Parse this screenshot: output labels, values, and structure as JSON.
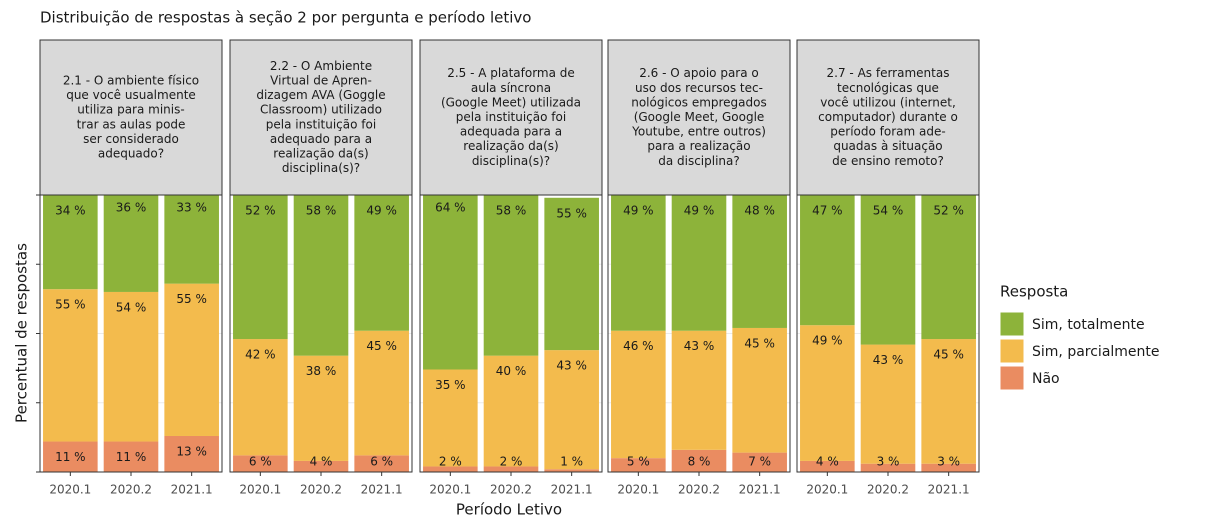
{
  "title": "Distribuição de respostas à seção 2 por pergunta e período letivo",
  "xlabel": "Período Letivo",
  "ylabel": "Percentual de respostas",
  "legend_title": "Resposta",
  "chart_data": [
    {
      "type": "bar",
      "stacked": true,
      "title": [
        "2.1 - O ambiente físico",
        "que você usualmente",
        "utiliza para minis-",
        "trar as aulas pode",
        "ser considerado",
        "adequado?"
      ],
      "categories": [
        "2020.1",
        "2020.2",
        "2021.1"
      ],
      "ylim": [
        0,
        100
      ],
      "yticks": [
        0,
        25,
        50,
        75,
        100
      ],
      "grid": true,
      "series": [
        {
          "name": "Sim, totalmente",
          "color": "#8db33a",
          "values": [
            34,
            36,
            33
          ],
          "value_labels": [
            "34 %",
            "36 %",
            "33 %"
          ]
        },
        {
          "name": "Sim, parcialmente",
          "color": "#f3bb4d",
          "values": [
            55,
            54,
            55
          ],
          "value_labels": [
            "55 %",
            "54 %",
            "55 %"
          ]
        },
        {
          "name": "Não",
          "color": "#ea8c61",
          "values": [
            11,
            11,
            13
          ],
          "value_labels": [
            "11 %",
            "11 %",
            "13 %"
          ]
        }
      ]
    },
    {
      "type": "bar",
      "stacked": true,
      "title": [
        "2.2 - O Ambiente",
        "Virtual de Apren-",
        "dizagem AVA (Goggle",
        "Classroom) utilizado",
        "pela instituição foi",
        "adequado para a",
        "realização da(s)",
        "disciplina(s)?"
      ],
      "categories": [
        "2020.1",
        "2020.2",
        "2021.1"
      ],
      "ylim": [
        0,
        100
      ],
      "yticks": [
        0,
        25,
        50,
        75,
        100
      ],
      "grid": true,
      "series": [
        {
          "name": "Sim, totalmente",
          "color": "#8db33a",
          "values": [
            52,
            58,
            49
          ],
          "value_labels": [
            "52 %",
            "58 %",
            "49 %"
          ]
        },
        {
          "name": "Sim, parcialmente",
          "color": "#f3bb4d",
          "values": [
            42,
            38,
            45
          ],
          "value_labels": [
            "42 %",
            "38 %",
            "45 %"
          ]
        },
        {
          "name": "Não",
          "color": "#ea8c61",
          "values": [
            6,
            4,
            6
          ],
          "value_labels": [
            "6 %",
            "4 %",
            "6 %"
          ]
        }
      ]
    },
    {
      "type": "bar",
      "stacked": true,
      "title": [
        "2.5 - A plataforma de",
        "aula síncrona",
        "(Google Meet) utilizada",
        "pela instituição foi",
        "adequada para a",
        "realização da(s)",
        "disciplina(s)?"
      ],
      "categories": [
        "2020.1",
        "2020.2",
        "2021.1"
      ],
      "ylim": [
        0,
        100
      ],
      "yticks": [
        0,
        25,
        50,
        75,
        100
      ],
      "grid": true,
      "series": [
        {
          "name": "Sim, totalmente",
          "color": "#8db33a",
          "values": [
            64,
            58,
            55
          ],
          "value_labels": [
            "64 %",
            "58 %",
            "55 %"
          ]
        },
        {
          "name": "Sim, parcialmente",
          "color": "#f3bb4d",
          "values": [
            35,
            40,
            43
          ],
          "value_labels": [
            "35 %",
            "40 %",
            "43 %"
          ]
        },
        {
          "name": "Não",
          "color": "#ea8c61",
          "values": [
            2,
            2,
            1
          ],
          "value_labels": [
            "2 %",
            "2 %",
            "1 %"
          ]
        }
      ]
    },
    {
      "type": "bar",
      "stacked": true,
      "title": [
        "2.6 - O apoio para o",
        "uso dos recursos tec-",
        "nológicos empregados",
        "(Google Meet, Google",
        "Youtube, entre outros)",
        "para a realização",
        "da disciplina?"
      ],
      "categories": [
        "2020.1",
        "2020.2",
        "2021.1"
      ],
      "ylim": [
        0,
        100
      ],
      "yticks": [
        0,
        25,
        50,
        75,
        100
      ],
      "grid": true,
      "series": [
        {
          "name": "Sim, totalmente",
          "color": "#8db33a",
          "values": [
            49,
            49,
            48
          ],
          "value_labels": [
            "49 %",
            "49 %",
            "48 %"
          ]
        },
        {
          "name": "Sim, parcialmente",
          "color": "#f3bb4d",
          "values": [
            46,
            43,
            45
          ],
          "value_labels": [
            "46 %",
            "43 %",
            "45 %"
          ]
        },
        {
          "name": "Não",
          "color": "#ea8c61",
          "values": [
            5,
            8,
            7
          ],
          "value_labels": [
            "5 %",
            "8 %",
            "7 %"
          ]
        }
      ]
    },
    {
      "type": "bar",
      "stacked": true,
      "title": [
        "2.7 - As ferramentas",
        "tecnológicas que",
        "você utilizou (internet,",
        "computador) durante o",
        "período foram ade-",
        "quadas à situação",
        "de ensino remoto?"
      ],
      "categories": [
        "2020.1",
        "2020.2",
        "2021.1"
      ],
      "ylim": [
        0,
        100
      ],
      "yticks": [
        0,
        25,
        50,
        75,
        100
      ],
      "grid": true,
      "series": [
        {
          "name": "Sim, totalmente",
          "color": "#8db33a",
          "values": [
            47,
            54,
            52
          ],
          "value_labels": [
            "47 %",
            "54 %",
            "52 %"
          ]
        },
        {
          "name": "Sim, parcialmente",
          "color": "#f3bb4d",
          "values": [
            49,
            43,
            45
          ],
          "value_labels": [
            "49 %",
            "43 %",
            "45 %"
          ]
        },
        {
          "name": "Não",
          "color": "#ea8c61",
          "values": [
            4,
            3,
            3
          ],
          "value_labels": [
            "4 %",
            "3 %",
            "3 %"
          ]
        }
      ]
    }
  ]
}
